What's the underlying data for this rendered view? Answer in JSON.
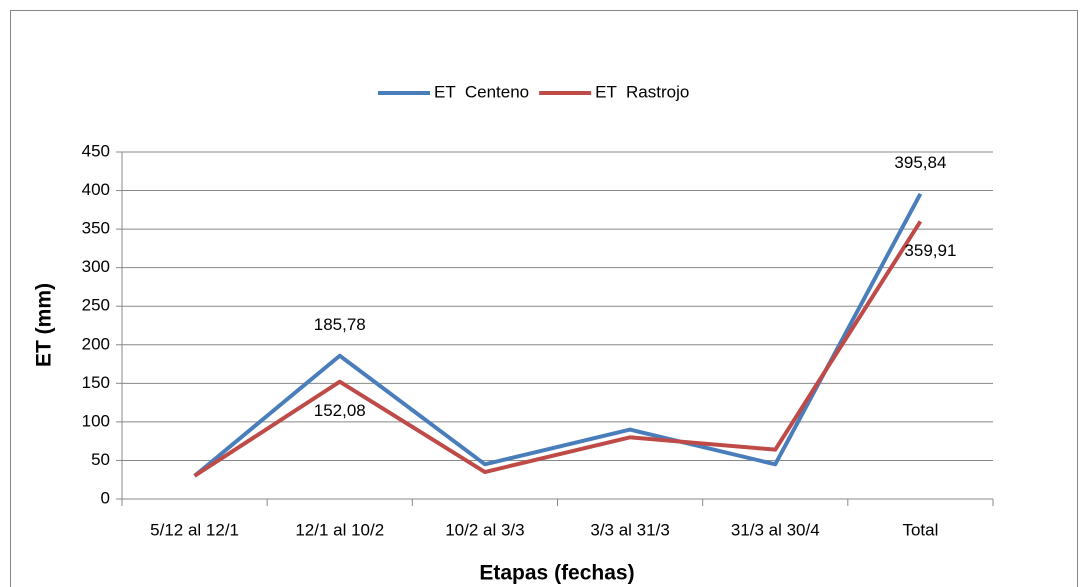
{
  "chart_data": {
    "type": "line",
    "x_label": "Etapas (fechas)",
    "y_label": "ET (mm)",
    "categories": [
      "5/12 al 12/1",
      "12/1 al 10/2",
      "10/2 al 3/3",
      "3/3 al 31/3",
      "31/3 al 30/4",
      "Total"
    ],
    "series": [
      {
        "name": "ET  Centeno",
        "color": "#4a7ebb",
        "values": [
          30,
          185.78,
          45,
          90,
          45,
          395.84
        ],
        "value_labels": [
          null,
          "185,78",
          null,
          null,
          null,
          "395,84"
        ]
      },
      {
        "name": "ET  Rastrojo",
        "color": "#be4b48",
        "values": [
          30,
          152.08,
          35,
          80,
          64,
          359.91
        ],
        "value_labels": [
          null,
          "152,08",
          null,
          null,
          null,
          "359,91"
        ]
      }
    ],
    "ylim": [
      0,
      450
    ],
    "yticks": [
      0,
      50,
      100,
      150,
      200,
      250,
      300,
      350,
      400,
      450
    ],
    "grid": true,
    "legend": "top"
  }
}
